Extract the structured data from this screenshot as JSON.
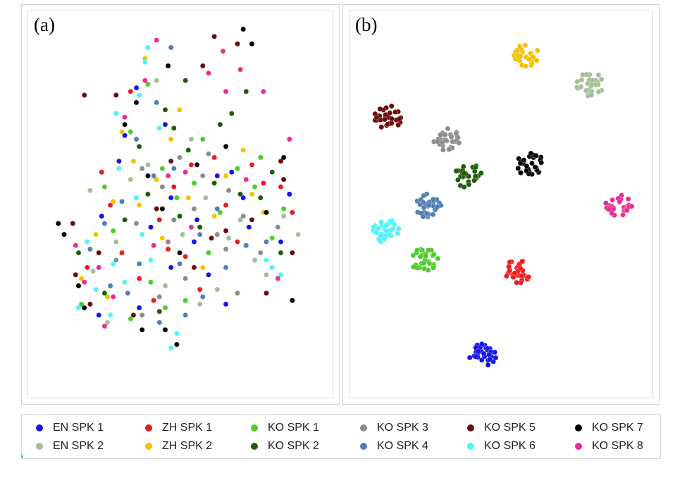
{
  "panels": [
    {
      "label": "(a)"
    },
    {
      "label": "(b)"
    }
  ],
  "legend": [
    {
      "key": "EN1",
      "label": "EN SPK 1",
      "color": "#1515e6"
    },
    {
      "key": "ZH1",
      "label": "ZH SPK 1",
      "color": "#ee1b1b"
    },
    {
      "key": "KO1",
      "label": "KO SPK 1",
      "color": "#4dcc2a"
    },
    {
      "key": "KO3",
      "label": "KO SPK 3",
      "color": "#8c8c8c"
    },
    {
      "key": "KO5",
      "label": "KO SPK 5",
      "color": "#6e0a0a"
    },
    {
      "key": "KO7",
      "label": "KO SPK 7",
      "color": "#000000"
    },
    {
      "key": "EN2",
      "label": "EN SPK 2",
      "color": "#a3bf96"
    },
    {
      "key": "ZH2",
      "label": "ZH SPK 2",
      "color": "#f5c000"
    },
    {
      "key": "KO2",
      "label": "KO SPK 2",
      "color": "#1f5c0a"
    },
    {
      "key": "KO4",
      "label": "KO SPK 4",
      "color": "#4f7fb3"
    },
    {
      "key": "KO6",
      "label": "KO SPK 6",
      "color": "#4ff2ff"
    },
    {
      "key": "KO8",
      "label": "KO SPK 8",
      "color": "#e62e91"
    }
  ],
  "chart_data": [
    {
      "type": "scatter",
      "title": "(a)",
      "xlabel": "",
      "ylabel": "",
      "description_axis": "t-SNE embedding, no axes shown",
      "xlim": [
        0,
        100
      ],
      "ylim": [
        0,
        100
      ],
      "series": [
        {
          "name": "EN SPK 1",
          "points": [
            [
              35,
              82
            ],
            [
              31,
              69
            ],
            [
              47,
              52
            ],
            [
              68,
              59
            ],
            [
              23,
              47
            ],
            [
              40,
              44
            ],
            [
              55,
              40
            ],
            [
              74,
              44
            ],
            [
              85,
              40
            ],
            [
              60,
              31
            ],
            [
              66,
              23
            ],
            [
              47,
              33
            ],
            [
              36,
              22
            ],
            [
              88,
              53
            ],
            [
              22,
              20
            ],
            [
              56,
              46
            ],
            [
              72,
              52
            ],
            [
              63,
              58
            ],
            [
              29,
              62
            ],
            [
              45,
              72
            ]
          ]
        },
        {
          "name": "EN SPK 2",
          "points": [
            [
              13,
              45
            ],
            [
              20,
              32
            ],
            [
              33,
              57
            ],
            [
              54,
              68
            ],
            [
              67,
              41
            ],
            [
              86,
              47
            ],
            [
              45,
              28
            ],
            [
              19,
              54
            ],
            [
              76,
              35
            ],
            [
              59,
              52
            ],
            [
              39,
              61
            ],
            [
              51,
              42
            ],
            [
              28,
              40
            ],
            [
              71,
              46
            ],
            [
              63,
              27
            ],
            [
              42,
              84
            ],
            [
              80,
              31
            ],
            [
              25,
              18
            ],
            [
              91,
              42
            ],
            [
              57,
              23
            ]
          ]
        },
        {
          "name": "ZH SPK 1",
          "points": [
            [
              33,
              81
            ],
            [
              18,
              33
            ],
            [
              43,
              46
            ],
            [
              62,
              63
            ],
            [
              79,
              56
            ],
            [
              52,
              36
            ],
            [
              26,
              50
            ],
            [
              70,
              40
            ],
            [
              48,
              55
            ],
            [
              36,
              30
            ],
            [
              57,
              27
            ],
            [
              41,
              24
            ],
            [
              89,
              48
            ],
            [
              66,
              50
            ],
            [
              23,
              59
            ],
            [
              75,
              61
            ],
            [
              30,
              37
            ],
            [
              54,
              61
            ],
            [
              85,
              55
            ],
            [
              46,
              38
            ]
          ]
        },
        {
          "name": "ZH SPK 2",
          "points": [
            [
              38,
              90
            ],
            [
              27,
              51
            ],
            [
              47,
              68
            ],
            [
              42,
              57
            ],
            [
              25,
              25
            ],
            [
              34,
              62
            ],
            [
              62,
              47
            ],
            [
              72,
              65
            ],
            [
              79,
              48
            ],
            [
              53,
              52
            ],
            [
              44,
              41
            ],
            [
              16,
              30
            ],
            [
              58,
              33
            ],
            [
              30,
              70
            ],
            [
              66,
              58
            ],
            [
              40,
              35
            ],
            [
              21,
              42
            ],
            [
              50,
              76
            ],
            [
              75,
              53
            ],
            [
              36,
              50
            ]
          ]
        },
        {
          "name": "KO SPK 1",
          "points": [
            [
              39,
              83
            ],
            [
              33,
              70
            ],
            [
              44,
              60
            ],
            [
              58,
              68
            ],
            [
              27,
              43
            ],
            [
              49,
              52
            ],
            [
              64,
              48
            ],
            [
              76,
              55
            ],
            [
              82,
              41
            ],
            [
              16,
              23
            ],
            [
              52,
              24
            ],
            [
              40,
              29
            ],
            [
              70,
              60
            ],
            [
              60,
              37
            ],
            [
              24,
              55
            ],
            [
              86,
              49
            ],
            [
              45,
              22
            ],
            [
              33,
              19
            ],
            [
              78,
              63
            ],
            [
              55,
              56
            ]
          ]
        },
        {
          "name": "KO SPK 2",
          "points": [
            [
              52,
              84
            ],
            [
              73,
              81
            ],
            [
              64,
              72
            ],
            [
              53,
              65
            ],
            [
              48,
              71
            ],
            [
              39,
              53
            ],
            [
              62,
              56
            ],
            [
              71,
              53
            ],
            [
              15,
              37
            ],
            [
              43,
              21
            ],
            [
              50,
              47
            ],
            [
              78,
              52
            ],
            [
              68,
              75
            ],
            [
              24,
              26
            ],
            [
              36,
              66
            ],
            [
              57,
              44
            ],
            [
              85,
              37
            ],
            [
              31,
              46
            ],
            [
              45,
              76
            ],
            [
              82,
              59
            ]
          ]
        },
        {
          "name": "KO SPK 3",
          "points": [
            [
              48,
              46
            ],
            [
              44,
              55
            ],
            [
              67,
              54
            ],
            [
              37,
              60
            ],
            [
              55,
              49
            ],
            [
              78,
              37
            ],
            [
              63,
              42
            ],
            [
              70,
              26
            ],
            [
              43,
              25
            ],
            [
              37,
              20
            ],
            [
              50,
              63
            ],
            [
              58,
              58
            ],
            [
              28,
              35
            ],
            [
              72,
              47
            ],
            [
              35,
              45
            ],
            [
              84,
              44
            ],
            [
              66,
              38
            ],
            [
              46,
              40
            ],
            [
              60,
              64
            ],
            [
              52,
              30
            ]
          ]
        },
        {
          "name": "KO SPK 4",
          "points": [
            [
              47,
              93
            ],
            [
              42,
              78
            ],
            [
              30,
              51
            ],
            [
              57,
              42
            ],
            [
              36,
              34
            ],
            [
              26,
              28
            ],
            [
              43,
              18
            ],
            [
              66,
              33
            ],
            [
              52,
              20
            ],
            [
              35,
              68
            ],
            [
              19,
              38
            ],
            [
              63,
              49
            ],
            [
              50,
              34
            ],
            [
              73,
              39
            ],
            [
              24,
              45
            ],
            [
              41,
              58
            ],
            [
              58,
              25
            ],
            [
              32,
              26
            ],
            [
              48,
              60
            ],
            [
              80,
              40
            ]
          ]
        },
        {
          "name": "KO SPK 5",
          "points": [
            [
              62,
              96
            ],
            [
              70,
              94
            ],
            [
              58,
              88
            ],
            [
              17,
              80
            ],
            [
              28,
              80
            ],
            [
              19,
              23
            ],
            [
              80,
              26
            ],
            [
              86,
              57
            ],
            [
              13,
              45
            ],
            [
              22,
              37
            ],
            [
              14,
              31
            ],
            [
              42,
              49
            ],
            [
              61,
              41
            ],
            [
              85,
              62
            ],
            [
              75,
              46
            ],
            [
              34,
              20
            ],
            [
              47,
              62
            ],
            [
              55,
              33
            ],
            [
              89,
              37
            ],
            [
              66,
              43
            ]
          ]
        },
        {
          "name": "KO SPK 6",
          "points": [
            [
              39,
              93
            ],
            [
              38,
              89
            ],
            [
              36,
              80
            ],
            [
              28,
              75
            ],
            [
              29,
              60
            ],
            [
              40,
              35
            ],
            [
              18,
              40
            ],
            [
              27,
              34
            ],
            [
              21,
              27
            ],
            [
              15,
              22
            ],
            [
              85,
              31
            ],
            [
              47,
              11
            ],
            [
              35,
              52
            ],
            [
              80,
              35
            ],
            [
              31,
              29
            ],
            [
              37,
              42
            ],
            [
              26,
              20
            ],
            [
              43,
              71
            ],
            [
              82,
              33
            ],
            [
              49,
              15
            ]
          ]
        },
        {
          "name": "KO SPK 7",
          "points": [
            [
              72,
              98
            ],
            [
              75,
              94
            ],
            [
              46,
              88
            ],
            [
              35,
              78
            ],
            [
              31,
              72
            ],
            [
              39,
              58
            ],
            [
              44,
              49
            ],
            [
              50,
              37
            ],
            [
              86,
              63
            ],
            [
              8,
              45
            ],
            [
              10,
              42
            ],
            [
              15,
              28
            ],
            [
              37,
              16
            ],
            [
              49,
              12
            ],
            [
              89,
              24
            ],
            [
              17,
              22
            ],
            [
              45,
              16
            ],
            [
              80,
              48
            ],
            [
              56,
              61
            ],
            [
              66,
              66
            ]
          ]
        },
        {
          "name": "KO SPK 8",
          "points": [
            [
              42,
              95
            ],
            [
              65,
              92
            ],
            [
              66,
              81
            ],
            [
              79,
              81
            ],
            [
              31,
              74
            ],
            [
              14,
              39
            ],
            [
              17,
              29
            ],
            [
              24,
              17
            ],
            [
              88,
              68
            ],
            [
              84,
              30
            ],
            [
              52,
              59
            ],
            [
              38,
              84
            ],
            [
              60,
              86
            ],
            [
              27,
              25
            ],
            [
              73,
              57
            ],
            [
              46,
              58
            ],
            [
              22,
              33
            ],
            [
              54,
              44
            ],
            [
              71,
              87
            ],
            [
              41,
              39
            ]
          ]
        }
      ]
    },
    {
      "type": "scatter",
      "title": "(b)",
      "xlabel": "",
      "ylabel": "",
      "description_axis": "t-SNE embedding, no axes shown; speakers form distinct clusters",
      "xlim": [
        0,
        100
      ],
      "ylim": [
        0,
        100
      ],
      "clusters": [
        {
          "name": "ZH SPK 2",
          "center": [
            58,
            91
          ]
        },
        {
          "name": "EN SPK 2",
          "center": [
            80,
            83
          ]
        },
        {
          "name": "KO SPK 5",
          "center": [
            12,
            74
          ]
        },
        {
          "name": "KO SPK 3",
          "center": [
            32,
            68
          ]
        },
        {
          "name": "KO SPK 7",
          "center": [
            60,
            61
          ]
        },
        {
          "name": "KO SPK 2",
          "center": [
            39,
            58
          ]
        },
        {
          "name": "KO SPK 8",
          "center": [
            90,
            50
          ]
        },
        {
          "name": "KO SPK 4",
          "center": [
            25,
            50
          ]
        },
        {
          "name": "KO SPK 6",
          "center": [
            11,
            43
          ]
        },
        {
          "name": "KO SPK 1",
          "center": [
            24,
            35
          ]
        },
        {
          "name": "ZH SPK 1",
          "center": [
            56,
            32
          ]
        },
        {
          "name": "EN SPK 1",
          "center": [
            44,
            9
          ]
        }
      ]
    }
  ]
}
